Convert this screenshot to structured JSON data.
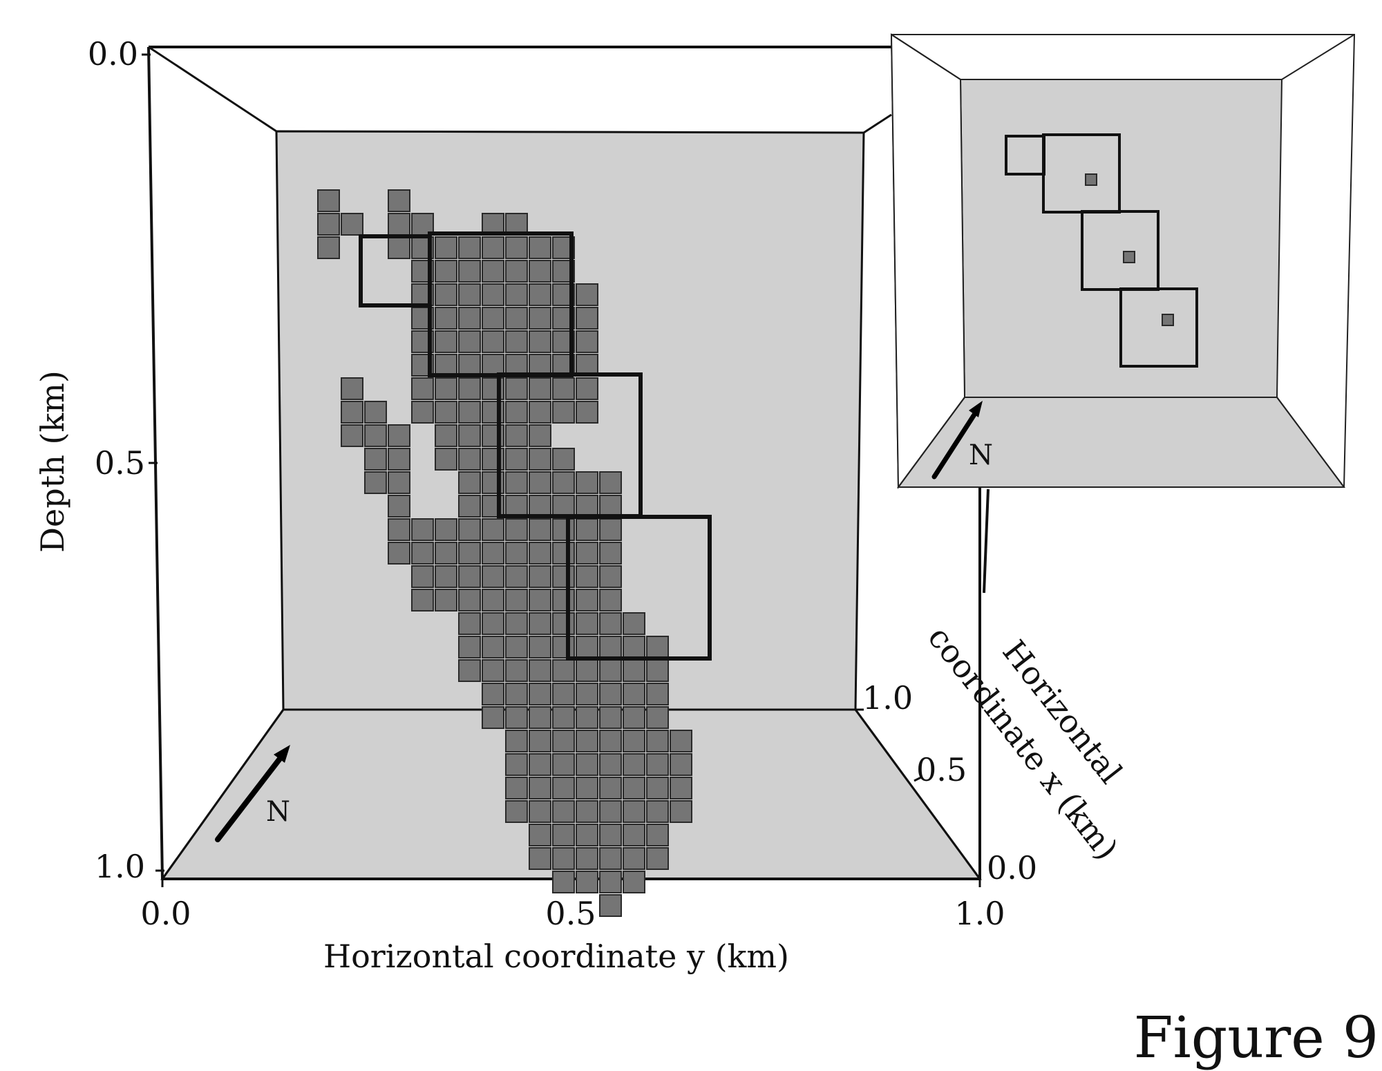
{
  "figure_label": "Figure 9",
  "north_label": "N",
  "axes": {
    "depth_label": "Depth (km)",
    "y_label": "Horizontal coordinate y (km)",
    "x_label_line1": "Horizontal",
    "x_label_line2": "coordinate x (km)",
    "depth_ticks": [
      "0.0",
      "0.5",
      "1.0"
    ],
    "y_ticks": [
      "0.0",
      "0.5",
      "1.0"
    ],
    "x_ticks": [
      "0.0",
      "0.5",
      "1.0"
    ]
  },
  "colors": {
    "panel_fill": "#d0d0d0",
    "cell_fill": "#757575",
    "cell_stroke": "#2a2a2a",
    "frame_stroke": "#111111"
  }
}
